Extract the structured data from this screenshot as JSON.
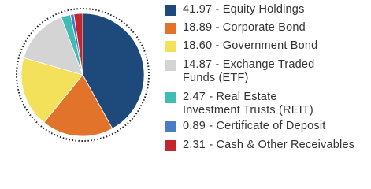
{
  "chart_data": {
    "type": "pie",
    "categories": [
      "41.97 - Equity Holdings",
      "18.89 - Corporate Bond",
      "18.60 - Government Bond",
      "14.87 - Exchange Traded Funds (ETF)",
      "2.47 - Real Estate Investment Trusts (REIT)",
      "0.89 - Certificate of Deposit",
      "2.31 - Cash & Other Receivables"
    ],
    "values": [
      41.97,
      18.89,
      18.6,
      14.87,
      2.47,
      0.89,
      2.31
    ],
    "colors": [
      "#1d4a7b",
      "#e2732a",
      "#f3e15c",
      "#d4d4d4",
      "#3fbdb3",
      "#4a7cc5",
      "#c1282e"
    ]
  }
}
